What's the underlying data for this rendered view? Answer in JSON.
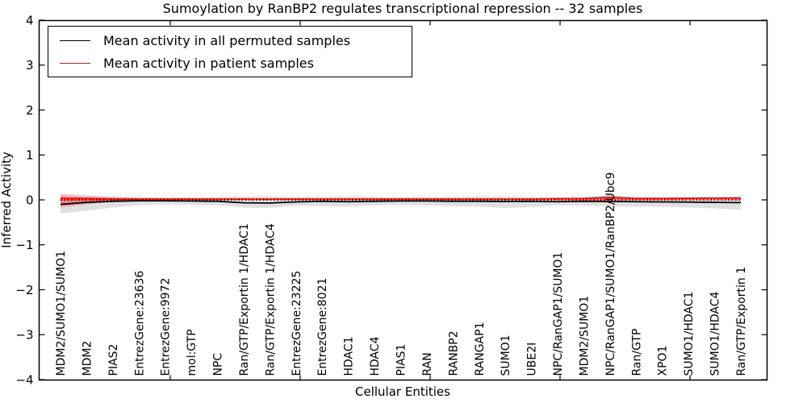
{
  "title": "Sumoylation by RanBP2 regulates transcriptional repression -- 32 samples",
  "legend": {
    "items": [
      {
        "label": "Mean activity in all permuted samples",
        "color": "#000000"
      },
      {
        "label": "Mean activity in patient samples",
        "color": "#ff0000"
      }
    ]
  },
  "axes": {
    "xlabel": "Cellular Entities",
    "ylabel": "Inferred Activity",
    "ytick_labels": [
      "4",
      "3",
      "2",
      "1",
      "0",
      "−1",
      "−2",
      "−3",
      "−4"
    ]
  },
  "chart_data": {
    "type": "line",
    "title": "Sumoylation by RanBP2 regulates transcriptional repression -- 32 samples",
    "xlabel": "Cellular Entities",
    "ylabel": "Inferred Activity",
    "ylim": [
      -4,
      4
    ],
    "yticks": [
      4,
      3,
      2,
      1,
      0,
      -1,
      -2,
      -3,
      -4
    ],
    "grid": false,
    "legend_position": "upper left",
    "zero_line": {
      "y": 0,
      "style": "dotted",
      "color": "#000000"
    },
    "categories": [
      "MDM2/SUMO1/SUMO1",
      "MDM2",
      "PIAS2",
      "EntrezGene:23636",
      "EntrezGene:9972",
      "mol:GTP",
      "NPC",
      "Ran/GTP/Exportin 1/HDAC1",
      "Ran/GTP/Exportin 1/HDAC4",
      "EntrezGene:23225",
      "EntrezGene:8021",
      "HDAC1",
      "HDAC4",
      "PIAS1",
      "RAN",
      "RANBP2",
      "RANGAP1",
      "SUMO1",
      "UBE2I",
      "NPC/RanGAP1/SUMO1",
      "MDM2/SUMO1",
      "NPC/RanGAP1/SUMO1/RanBP2/Ubc9",
      "Ran/GTP",
      "XPO1",
      "SUMO1/HDAC1",
      "SUMO1/HDAC4",
      "Ran/GTP/Exportin 1"
    ],
    "series": [
      {
        "name": "Mean activity in all permuted samples",
        "color": "#000000",
        "band_color": "rgba(0,0,0,0.12)",
        "values": [
          -0.1,
          -0.055,
          -0.03,
          -0.02,
          -0.02,
          -0.025,
          -0.03,
          -0.065,
          -0.07,
          -0.045,
          -0.03,
          -0.04,
          -0.03,
          -0.025,
          -0.025,
          -0.03,
          -0.03,
          -0.035,
          -0.03,
          -0.04,
          -0.03,
          -0.035,
          -0.04,
          -0.045,
          -0.05,
          -0.055,
          -0.06
        ],
        "band_upper": [
          0.07,
          0.07,
          0.08,
          0.07,
          0.06,
          0.06,
          0.07,
          0.08,
          0.08,
          0.07,
          0.07,
          0.08,
          0.07,
          0.07,
          0.07,
          0.07,
          0.08,
          0.08,
          0.07,
          0.07,
          0.07,
          0.09,
          0.08,
          0.07,
          0.07,
          0.07,
          0.08
        ],
        "band_lower": [
          -0.3,
          -0.24,
          -0.17,
          -0.12,
          -0.1,
          -0.11,
          -0.12,
          -0.17,
          -0.18,
          -0.13,
          -0.14,
          -0.15,
          -0.12,
          -0.11,
          -0.12,
          -0.14,
          -0.15,
          -0.18,
          -0.16,
          -0.12,
          -0.13,
          -0.14,
          -0.15,
          -0.15,
          -0.17,
          -0.19,
          -0.22
        ]
      },
      {
        "name": "Mean activity in patient samples",
        "color": "#ff0000",
        "band_color": "rgba(255,0,0,0.22)",
        "band_inner_color": "rgba(255,0,0,0.28)",
        "values": [
          0.03,
          0.025,
          0.02,
          0.02,
          0.02,
          0.02,
          0.02,
          0.02,
          0.02,
          0.02,
          0.02,
          0.02,
          0.02,
          0.02,
          0.02,
          0.02,
          0.02,
          0.02,
          0.02,
          0.025,
          0.03,
          0.05,
          0.03,
          0.03,
          0.035,
          0.04,
          0.04
        ],
        "band_upper": [
          0.14,
          0.1,
          0.06,
          0.04,
          0.035,
          0.035,
          0.035,
          0.035,
          0.035,
          0.035,
          0.035,
          0.035,
          0.035,
          0.035,
          0.035,
          0.035,
          0.035,
          0.035,
          0.035,
          0.04,
          0.05,
          0.11,
          0.05,
          0.05,
          0.055,
          0.06,
          0.07
        ],
        "band_lower": [
          -0.17,
          -0.1,
          -0.04,
          -0.01,
          0.0,
          0.0,
          0.0,
          0.0,
          0.0,
          0.0,
          0.0,
          0.0,
          0.0,
          0.0,
          0.0,
          0.0,
          0.0,
          0.0,
          0.0,
          0.0,
          -0.005,
          -0.02,
          0.0,
          0.0,
          0.005,
          0.01,
          0.0
        ]
      }
    ]
  }
}
